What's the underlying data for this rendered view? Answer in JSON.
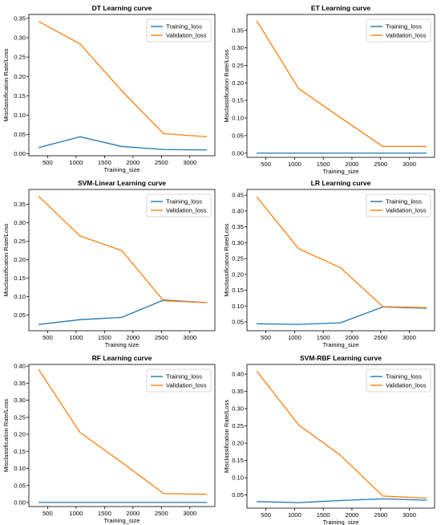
{
  "colors": {
    "training": "#1f77b4",
    "validation": "#ff7f0e"
  },
  "chart_data": [
    {
      "type": "line",
      "title": "DT Learning curve",
      "xlabel": "Training_size",
      "ylabel": "Misclassification Rate/Loss",
      "x": [
        340,
        1070,
        1800,
        2540,
        3300
      ],
      "xlim": [
        170,
        3440
      ],
      "xticks": [
        500,
        1000,
        1500,
        2000,
        2500,
        3000
      ],
      "ylim": [
        -0.005,
        0.36
      ],
      "yticks": [
        0.0,
        0.05,
        0.1,
        0.15,
        0.2,
        0.25,
        0.3,
        0.35
      ],
      "ytick_labels": [
        "0.00",
        "0.05",
        "0.10",
        "0.15",
        "0.20",
        "0.25",
        "0.30",
        "0.35"
      ],
      "legend": "top-right",
      "series": [
        {
          "name": "Training_loss",
          "values": [
            0.016,
            0.044,
            0.019,
            0.011,
            0.01
          ]
        },
        {
          "name": "Validation_loss",
          "values": [
            0.342,
            0.284,
            0.163,
            0.052,
            0.044
          ]
        }
      ]
    },
    {
      "type": "line",
      "title": "ET Learning curve",
      "xlabel": "Training_size",
      "ylabel": "Misclassification Rate/Loss",
      "x": [
        340,
        1070,
        1800,
        2540,
        3300
      ],
      "xlim": [
        170,
        3440
      ],
      "xticks": [
        500,
        1000,
        1500,
        2000,
        2500,
        3000
      ],
      "ylim": [
        -0.012,
        0.395
      ],
      "yticks": [
        0.0,
        0.05,
        0.1,
        0.15,
        0.2,
        0.25,
        0.3,
        0.35
      ],
      "ytick_labels": [
        "0.00",
        "0.05",
        "0.10",
        "0.15",
        "0.20",
        "0.25",
        "0.30",
        "0.35"
      ],
      "legend": "top-right",
      "series": [
        {
          "name": "Training_loss",
          "values": [
            0.0,
            0.0,
            0.0,
            0.0,
            0.0
          ]
        },
        {
          "name": "Validation_loss",
          "values": [
            0.377,
            0.184,
            0.101,
            0.019,
            0.019
          ]
        }
      ]
    },
    {
      "type": "line",
      "title": "SVM-Linear Learning curve",
      "xlabel": "Training  size",
      "ylabel": "Misclassification Rate/Loss",
      "x": [
        340,
        1070,
        1800,
        2540,
        3300
      ],
      "xlim": [
        170,
        3440
      ],
      "xticks": [
        500,
        1000,
        1500,
        2000,
        2500,
        3000
      ],
      "ylim": [
        0.008,
        0.39
      ],
      "yticks": [
        0.05,
        0.1,
        0.15,
        0.2,
        0.25,
        0.3,
        0.35
      ],
      "ytick_labels": [
        "0.05",
        "0.10",
        "0.15",
        "0.20",
        "0.25",
        "0.30",
        "0.35"
      ],
      "legend": "top-right",
      "series": [
        {
          "name": "Training_loss",
          "values": [
            0.025,
            0.038,
            0.044,
            0.091,
            0.084
          ]
        },
        {
          "name": "Validation_loss",
          "values": [
            0.372,
            0.264,
            0.225,
            0.089,
            0.084
          ]
        }
      ]
    },
    {
      "type": "line",
      "title": "LR Learning curve",
      "xlabel": "Training_size",
      "ylabel": "Misclassification Rate/Loss",
      "x": [
        340,
        1070,
        1800,
        2540,
        3300
      ],
      "xlim": [
        170,
        3440
      ],
      "xticks": [
        500,
        1000,
        1500,
        2000,
        2500,
        3000
      ],
      "ylim": [
        0.022,
        0.468
      ],
      "yticks": [
        0.05,
        0.1,
        0.15,
        0.2,
        0.25,
        0.3,
        0.35,
        0.4,
        0.45
      ],
      "ytick_labels": [
        "0.05",
        "0.10",
        "0.15",
        "0.20",
        "0.25",
        "0.30",
        "0.35",
        "0.40",
        "0.45"
      ],
      "legend": "top-right",
      "series": [
        {
          "name": "Training_loss",
          "values": [
            0.044,
            0.042,
            0.047,
            0.097,
            0.093
          ]
        },
        {
          "name": "Validation_loss",
          "values": [
            0.445,
            0.281,
            0.221,
            0.098,
            0.095
          ]
        }
      ]
    },
    {
      "type": "line",
      "title": "RF Learning curve",
      "xlabel": "Training_size",
      "ylabel": "Misclassification Rate/Loss",
      "x": [
        340,
        1070,
        1800,
        2540,
        3300
      ],
      "xlim": [
        170,
        3440
      ],
      "xticks": [
        500,
        1000,
        1500,
        2000,
        2500,
        3000
      ],
      "ylim": [
        -0.012,
        0.405
      ],
      "yticks": [
        0.0,
        0.05,
        0.1,
        0.15,
        0.2,
        0.25,
        0.3,
        0.35,
        0.4
      ],
      "ytick_labels": [
        "0.00",
        "0.05",
        "0.10",
        "0.15",
        "0.20",
        "0.25",
        "0.30",
        "0.35",
        "0.40"
      ],
      "legend": "top-right",
      "series": [
        {
          "name": "Training_loss",
          "values": [
            0.0,
            0.0,
            0.0,
            0.0,
            0.0
          ]
        },
        {
          "name": "Validation_loss",
          "values": [
            0.391,
            0.205,
            0.118,
            0.026,
            0.024
          ]
        }
      ]
    },
    {
      "type": "line",
      "title": "SVM-RBF Learning curve",
      "xlabel": "Training_size",
      "ylabel": "Misclassification Rate/Loss",
      "x": [
        340,
        1070,
        1800,
        2540,
        3300
      ],
      "xlim": [
        170,
        3440
      ],
      "xticks": [
        500,
        1000,
        1500,
        2000,
        2500,
        3000
      ],
      "ylim": [
        0.012,
        0.428
      ],
      "yticks": [
        0.05,
        0.1,
        0.15,
        0.2,
        0.25,
        0.3,
        0.35,
        0.4
      ],
      "ytick_labels": [
        "0.05",
        "0.10",
        "0.15",
        "0.20",
        "0.25",
        "0.30",
        "0.35",
        "0.40"
      ],
      "legend": "top-right",
      "series": [
        {
          "name": "Training_loss",
          "values": [
            0.031,
            0.028,
            0.034,
            0.039,
            0.035
          ]
        },
        {
          "name": "Validation_loss",
          "values": [
            0.409,
            0.253,
            0.165,
            0.047,
            0.041
          ]
        }
      ]
    }
  ]
}
